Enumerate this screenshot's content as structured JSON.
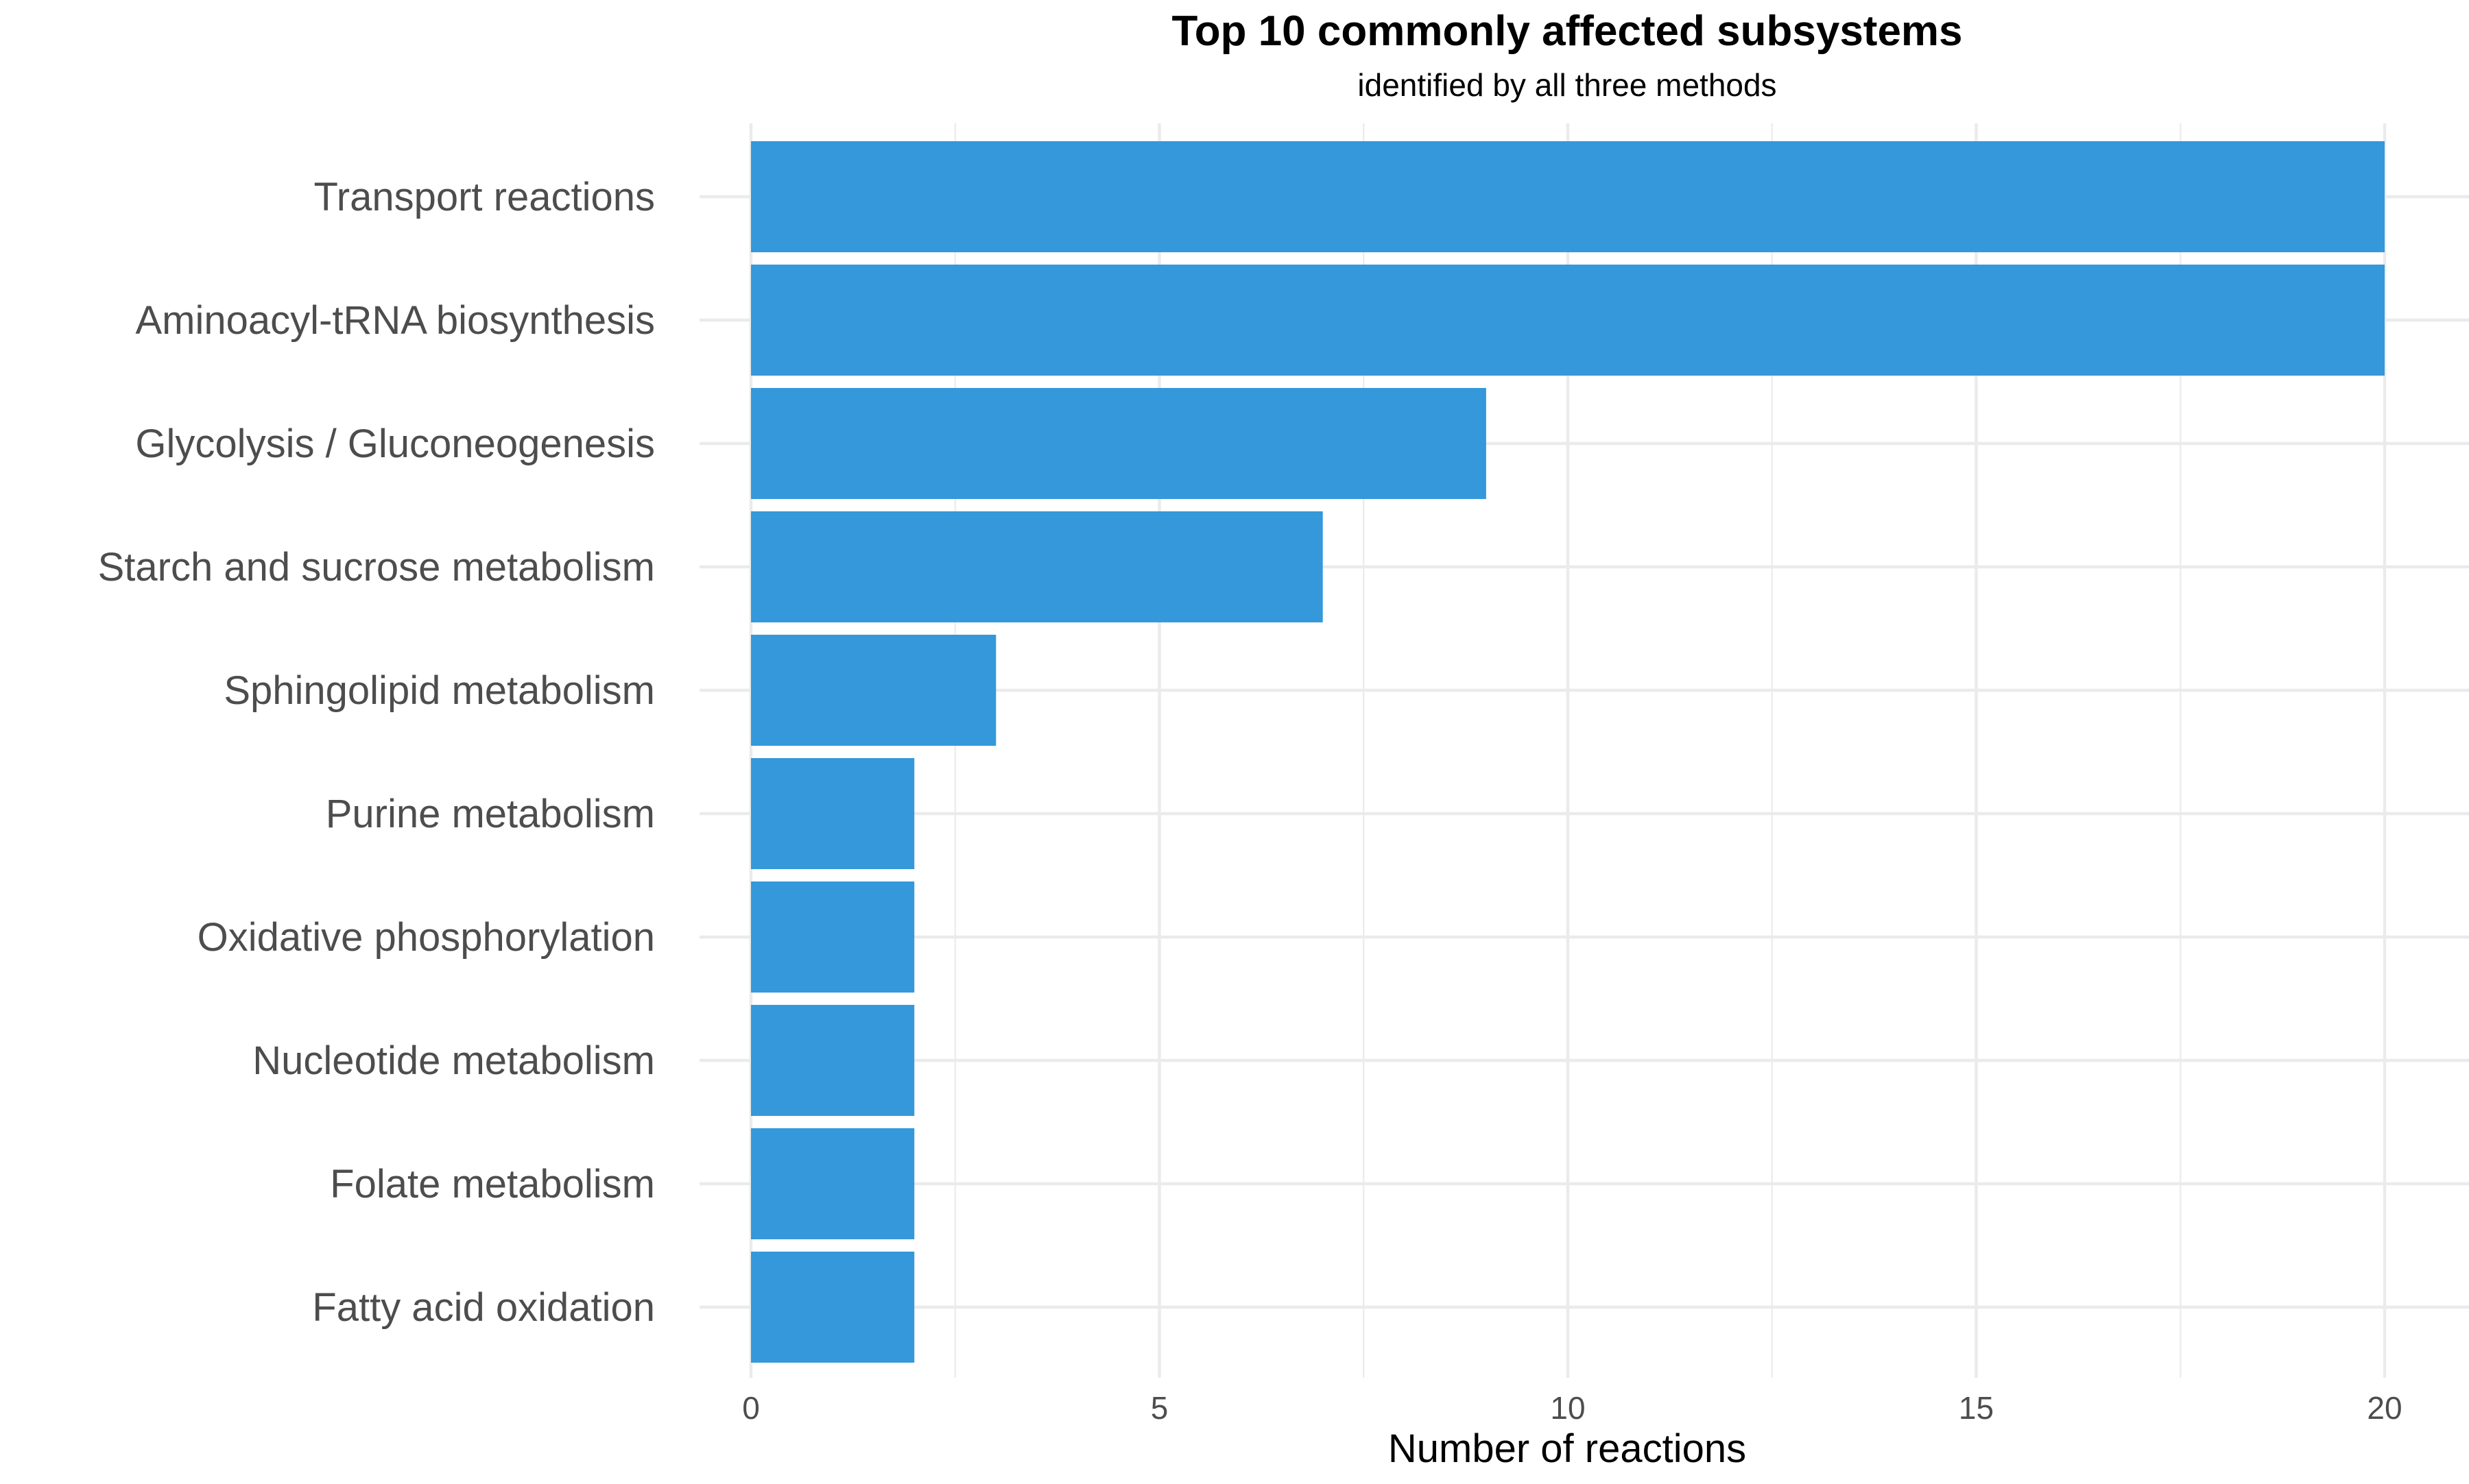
{
  "chart_data": {
    "type": "bar",
    "orientation": "horizontal",
    "title": "Top 10 commonly affected subsystems",
    "subtitle": "identified by all three methods",
    "xlabel": "Number of reactions",
    "ylabel": "",
    "categories": [
      "Transport reactions",
      "Aminoacyl-tRNA biosynthesis",
      "Glycolysis / Gluconeogenesis",
      "Starch and sucrose metabolism",
      "Sphingolipid metabolism",
      "Purine metabolism",
      "Oxidative phosphorylation",
      "Nucleotide metabolism",
      "Folate metabolism",
      "Fatty acid oxidation"
    ],
    "values": [
      20,
      20,
      9,
      7,
      3,
      2,
      2,
      2,
      2,
      2
    ],
    "xlim": [
      0,
      21
    ],
    "xticks": [
      0,
      5,
      10,
      15,
      20
    ],
    "xtick_labels": [
      "0",
      "5",
      "10",
      "15",
      "20"
    ],
    "grid": true,
    "legend": "none",
    "bar_color": "#3498db",
    "gridline_color": "#ebebeb"
  }
}
